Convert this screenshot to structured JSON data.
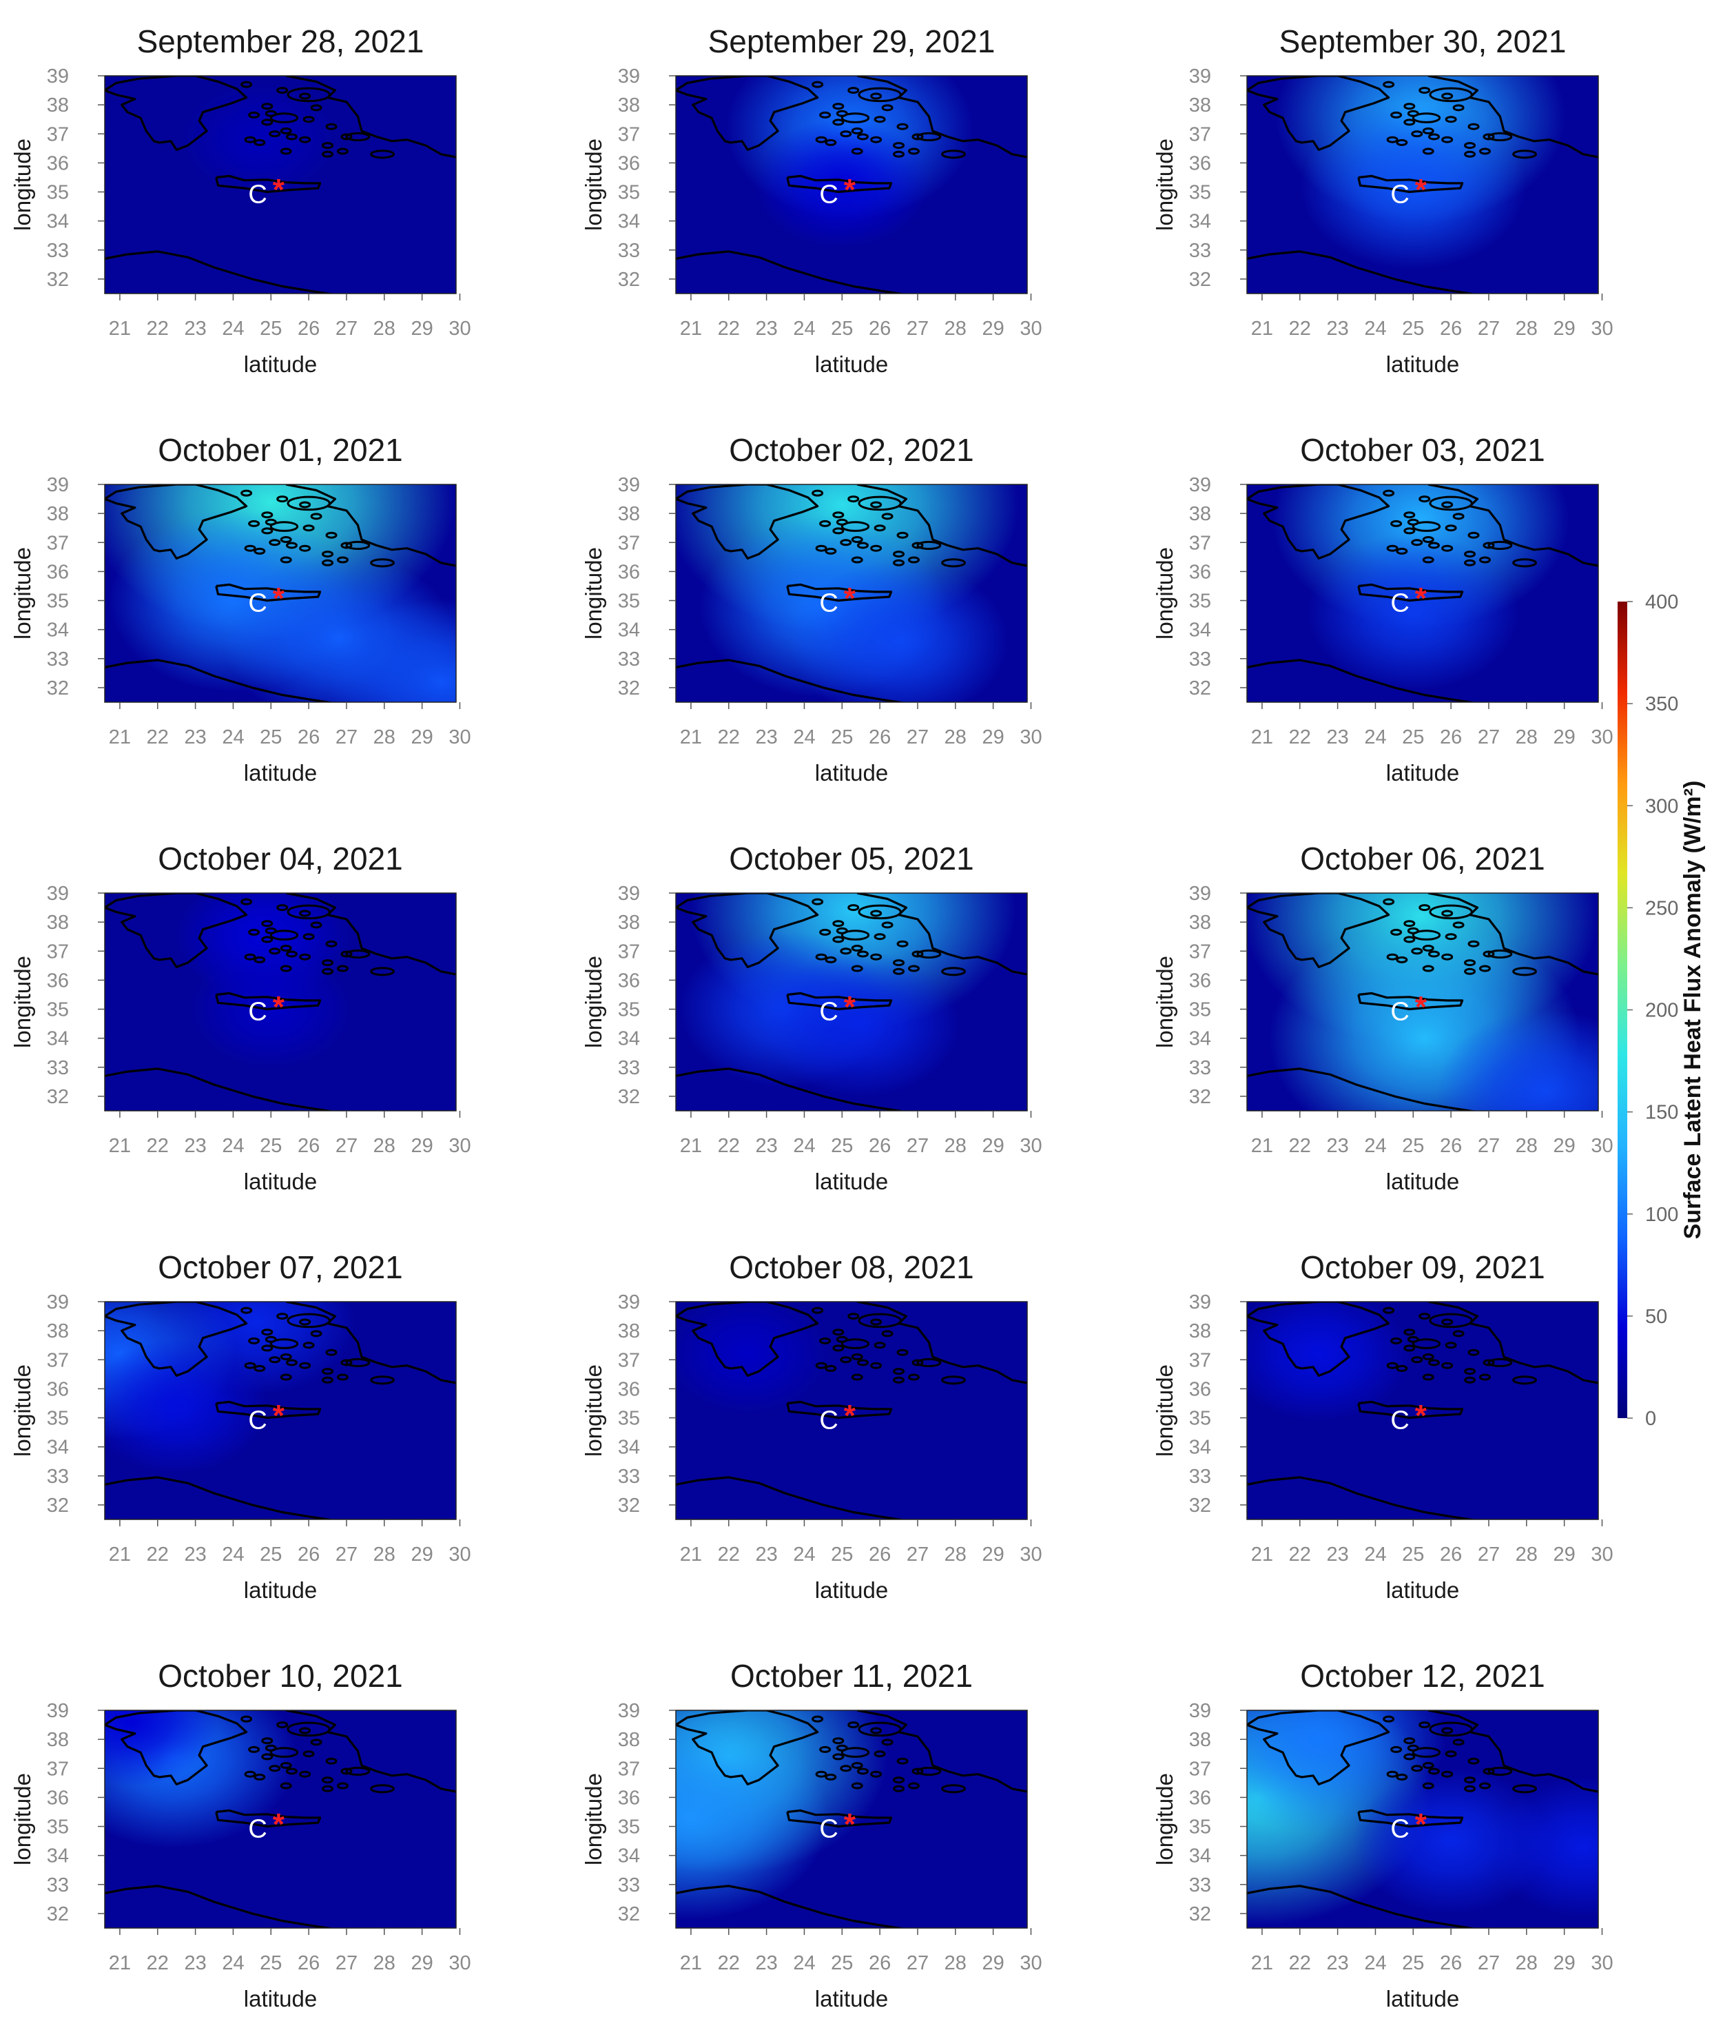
{
  "chart_data": {
    "type": "heatmap",
    "grid": "3 columns x 5 rows of map panels",
    "panels": [
      {
        "title": "September 28, 2021",
        "blobs": [
          {
            "lon": 24.7,
            "lat": 36.8,
            "value": 30
          }
        ]
      },
      {
        "title": "September 29, 2021",
        "blobs": [
          {
            "lon": 25.2,
            "lat": 37.2,
            "value": 95
          },
          {
            "lon": 25.0,
            "lat": 35.3,
            "value": 45
          }
        ]
      },
      {
        "title": "September 30, 2021",
        "blobs": [
          {
            "lon": 25.2,
            "lat": 37.6,
            "value": 125
          },
          {
            "lon": 25.0,
            "lat": 35.2,
            "value": 80
          }
        ]
      },
      {
        "title": "October 01, 2021",
        "blobs": [
          {
            "lon": 25.0,
            "lat": 38.4,
            "value": 180
          },
          {
            "lon": 24.0,
            "lat": 35.0,
            "value": 95
          },
          {
            "lon": 26.8,
            "lat": 33.7,
            "value": 85
          },
          {
            "lon": 29.5,
            "lat": 32.2,
            "value": 80
          }
        ]
      },
      {
        "title": "October 02, 2021",
        "blobs": [
          {
            "lon": 25.0,
            "lat": 38.3,
            "value": 170
          },
          {
            "lon": 24.5,
            "lat": 34.8,
            "value": 95
          },
          {
            "lon": 26.5,
            "lat": 33.6,
            "value": 75
          }
        ]
      },
      {
        "title": "October 03, 2021",
        "blobs": [
          {
            "lon": 25.2,
            "lat": 37.8,
            "value": 130
          },
          {
            "lon": 25.0,
            "lat": 34.6,
            "value": 70
          }
        ]
      },
      {
        "title": "October 04, 2021",
        "blobs": [
          {
            "lon": 24.8,
            "lat": 37.5,
            "value": 45
          },
          {
            "lon": 25.0,
            "lat": 35.0,
            "value": 35
          }
        ]
      },
      {
        "title": "October 05, 2021",
        "blobs": [
          {
            "lon": 25.3,
            "lat": 38.4,
            "value": 150
          },
          {
            "lon": 23.5,
            "lat": 35.0,
            "value": 70
          },
          {
            "lon": 25.5,
            "lat": 34.5,
            "value": 60
          }
        ]
      },
      {
        "title": "October 06, 2021",
        "blobs": [
          {
            "lon": 25.2,
            "lat": 38.2,
            "value": 170
          },
          {
            "lon": 25.3,
            "lat": 34.0,
            "value": 140
          },
          {
            "lon": 28.5,
            "lat": 32.2,
            "value": 75
          }
        ]
      },
      {
        "title": "October 07, 2021",
        "blobs": [
          {
            "lon": 24.6,
            "lat": 38.3,
            "value": 60
          },
          {
            "lon": 21.0,
            "lat": 37.2,
            "value": 85
          },
          {
            "lon": 22.5,
            "lat": 35.4,
            "value": 50
          }
        ]
      },
      {
        "title": "October 08, 2021",
        "blobs": [
          {
            "lon": 22.5,
            "lat": 37.2,
            "value": 35
          }
        ]
      },
      {
        "title": "October 09, 2021",
        "blobs": [
          {
            "lon": 22.5,
            "lat": 37.2,
            "value": 50
          }
        ]
      },
      {
        "title": "October 10, 2021",
        "blobs": [
          {
            "lon": 22.4,
            "lat": 37.4,
            "value": 95
          },
          {
            "lon": 21.3,
            "lat": 38.6,
            "value": 45
          }
        ]
      },
      {
        "title": "October 11, 2021",
        "blobs": [
          {
            "lon": 22.0,
            "lat": 37.4,
            "value": 145
          },
          {
            "lon": 21.0,
            "lat": 35.3,
            "value": 115
          }
        ]
      },
      {
        "title": "October 12, 2021",
        "blobs": [
          {
            "lon": 20.9,
            "lat": 36.0,
            "value": 165
          },
          {
            "lon": 22.5,
            "lat": 38.0,
            "value": 100
          },
          {
            "lon": 26.0,
            "lat": 34.5,
            "value": 60
          },
          {
            "lon": 29.5,
            "lat": 34.3,
            "value": 55
          }
        ]
      }
    ],
    "xlabel": "latitude",
    "ylabel": "longitude",
    "xticks": [
      21,
      22,
      23,
      24,
      25,
      26,
      27,
      28,
      29,
      30
    ],
    "yticks": [
      32,
      33,
      34,
      35,
      36,
      37,
      38,
      39
    ],
    "xlim": [
      20.6,
      29.9
    ],
    "ylim": [
      31.5,
      39.0
    ],
    "colorbar": {
      "label": "Surface Latent Heat Flux Anomaly (W/m²)",
      "ticks": [
        0,
        50,
        100,
        150,
        200,
        250,
        300,
        350,
        400
      ],
      "range": [
        0,
        400
      ],
      "colors": [
        "#00007a",
        "#0000d8",
        "#1166ff",
        "#22b3ff",
        "#2ee6e6",
        "#7df08a",
        "#e0e624",
        "#ff9a10",
        "#f02a00",
        "#7f0000"
      ]
    },
    "markers": {
      "label_c": "C",
      "label_c_lon": 24.65,
      "label_c_lat": 34.95,
      "star_symbol": "*",
      "star_lon": 25.2,
      "star_lat": 35.2,
      "star_color": "#ff2020"
    },
    "coastline_color": "#000000",
    "background_color": "#03039a"
  }
}
